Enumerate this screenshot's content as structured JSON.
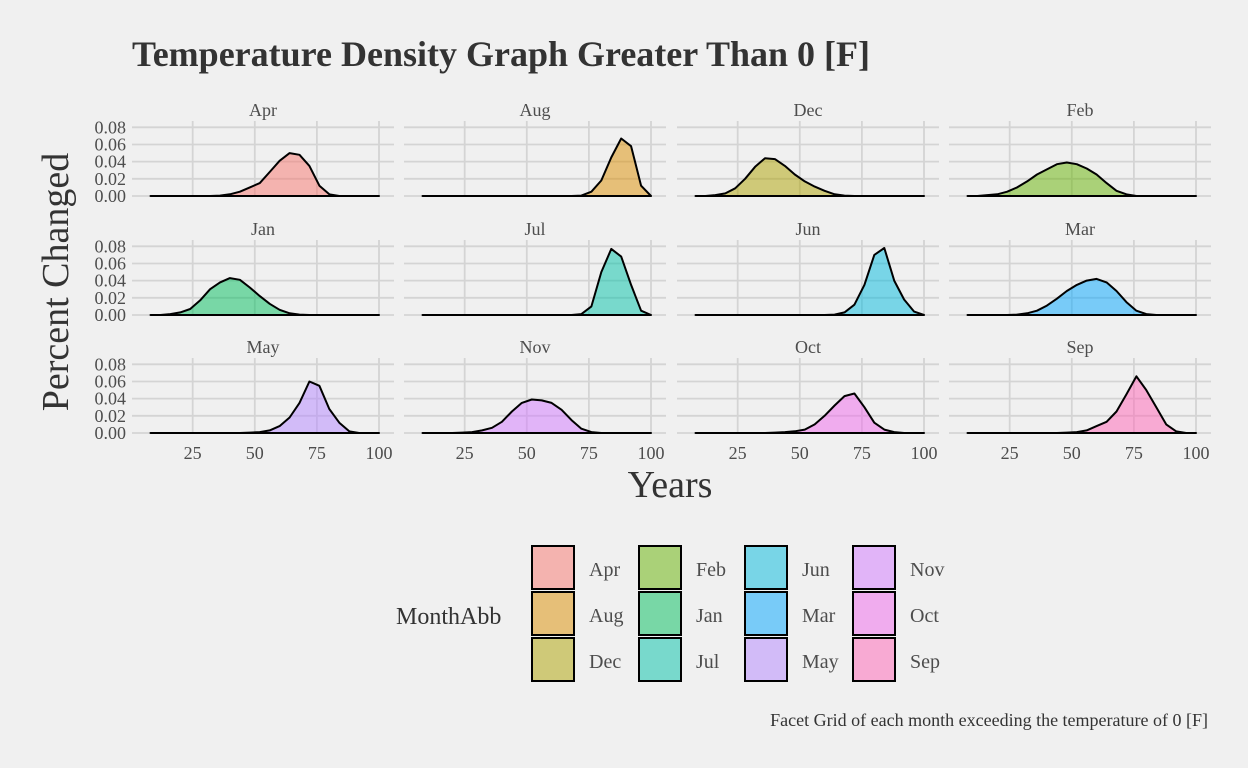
{
  "chart_data": {
    "type": "area",
    "subtype": "faceted-density",
    "title": "Temperature Density Graph Greater Than 0 [F]",
    "xlabel": "Years",
    "ylabel": "Percent Changed",
    "caption": "Facet Grid of each month exceeding the temperature of 0 [F]",
    "xlim": [
      5,
      100
    ],
    "ylim": [
      0,
      0.085
    ],
    "x_ticks": [
      25,
      50,
      75,
      100
    ],
    "x_tick_labels": [
      "25",
      "50",
      "75",
      "100"
    ],
    "y_ticks": [
      0,
      0.02,
      0.04,
      0.06,
      0.08
    ],
    "y_tick_labels": [
      "0.00",
      "0.02",
      "0.04",
      "0.06",
      "0.08"
    ],
    "grid": true,
    "legend": {
      "title": "MonthAbb",
      "placement": "bottom"
    },
    "x": [
      8,
      12,
      16,
      20,
      24,
      28,
      32,
      36,
      40,
      44,
      48,
      52,
      56,
      60,
      64,
      68,
      72,
      76,
      80,
      84,
      88,
      92,
      96,
      100
    ],
    "series": [
      {
        "name": "Apr",
        "color": "#F8766D",
        "values": [
          0,
          0,
          0,
          0,
          0,
          0,
          0,
          0.0005,
          0.002,
          0.005,
          0.01,
          0.015,
          0.028,
          0.041,
          0.05,
          0.048,
          0.035,
          0.012,
          0.002,
          0,
          0,
          0,
          0,
          0
        ]
      },
      {
        "name": "Aug",
        "color": "#DB8E00",
        "values": [
          0,
          0,
          0,
          0,
          0,
          0,
          0,
          0,
          0,
          0,
          0,
          0,
          0,
          0,
          0,
          0,
          0.0005,
          0.005,
          0.018,
          0.045,
          0.067,
          0.058,
          0.012,
          0
        ]
      },
      {
        "name": "Dec",
        "color": "#AEA200",
        "values": [
          0,
          0,
          0.001,
          0.003,
          0.009,
          0.02,
          0.034,
          0.044,
          0.043,
          0.035,
          0.025,
          0.017,
          0.011,
          0.006,
          0.002,
          0.0005,
          0,
          0,
          0,
          0,
          0,
          0,
          0,
          0
        ]
      },
      {
        "name": "Feb",
        "color": "#64B200",
        "values": [
          0,
          0,
          0.001,
          0.002,
          0.005,
          0.01,
          0.017,
          0.025,
          0.031,
          0.037,
          0.039,
          0.037,
          0.032,
          0.025,
          0.015,
          0.006,
          0.002,
          0,
          0,
          0,
          0,
          0,
          0,
          0
        ]
      },
      {
        "name": "Jan",
        "color": "#00BD5C",
        "values": [
          0,
          0,
          0.001,
          0.003,
          0.007,
          0.017,
          0.03,
          0.038,
          0.043,
          0.041,
          0.032,
          0.022,
          0.013,
          0.006,
          0.002,
          0.0005,
          0,
          0,
          0,
          0,
          0,
          0,
          0,
          0
        ]
      },
      {
        "name": "Jul",
        "color": "#00C1A7",
        "values": [
          0,
          0,
          0,
          0,
          0,
          0,
          0,
          0,
          0,
          0,
          0,
          0,
          0,
          0,
          0,
          0,
          0.001,
          0.01,
          0.05,
          0.077,
          0.068,
          0.035,
          0.005,
          0
        ]
      },
      {
        "name": "Jun",
        "color": "#00BADE",
        "values": [
          0,
          0,
          0,
          0,
          0,
          0,
          0,
          0,
          0,
          0,
          0,
          0,
          0,
          0,
          0.0005,
          0.003,
          0.012,
          0.035,
          0.07,
          0.078,
          0.04,
          0.018,
          0.004,
          0
        ]
      },
      {
        "name": "Mar",
        "color": "#00A6FF",
        "values": [
          0,
          0,
          0,
          0,
          0,
          0.0005,
          0.002,
          0.005,
          0.011,
          0.019,
          0.028,
          0.035,
          0.04,
          0.042,
          0.038,
          0.028,
          0.015,
          0.005,
          0.001,
          0,
          0,
          0,
          0,
          0
        ]
      },
      {
        "name": "May",
        "color": "#B385FF",
        "values": [
          0,
          0,
          0,
          0,
          0,
          0,
          0,
          0,
          0,
          0,
          0.0005,
          0.001,
          0.003,
          0.008,
          0.018,
          0.035,
          0.06,
          0.055,
          0.028,
          0.012,
          0.002,
          0,
          0,
          0
        ]
      },
      {
        "name": "Nov",
        "color": "#D277FF",
        "values": [
          0,
          0,
          0,
          0,
          0.0005,
          0.001,
          0.003,
          0.006,
          0.013,
          0.025,
          0.035,
          0.039,
          0.038,
          0.035,
          0.027,
          0.015,
          0.005,
          0.001,
          0,
          0,
          0,
          0,
          0,
          0
        ]
      },
      {
        "name": "Oct",
        "color": "#EF67EB",
        "values": [
          0,
          0,
          0,
          0,
          0,
          0,
          0,
          0,
          0.0005,
          0.001,
          0.002,
          0.004,
          0.01,
          0.02,
          0.032,
          0.043,
          0.046,
          0.03,
          0.012,
          0.004,
          0.001,
          0,
          0,
          0
        ]
      },
      {
        "name": "Sep",
        "color": "#FF63B6",
        "values": [
          0,
          0,
          0,
          0,
          0,
          0,
          0,
          0,
          0,
          0,
          0.0005,
          0.001,
          0.003,
          0.008,
          0.013,
          0.025,
          0.045,
          0.066,
          0.05,
          0.03,
          0.01,
          0.002,
          0,
          0
        ]
      }
    ]
  }
}
